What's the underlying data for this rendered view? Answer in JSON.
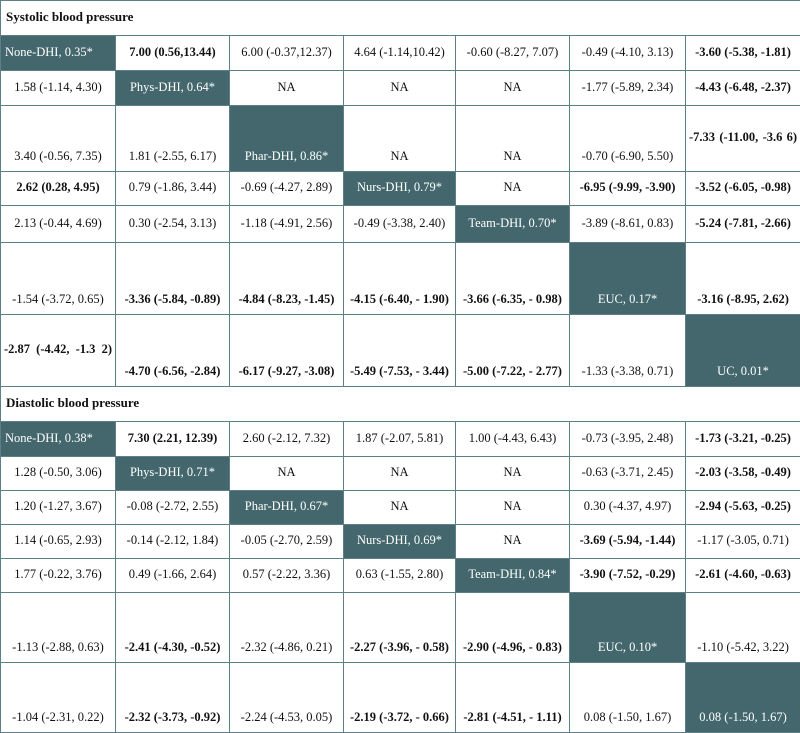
{
  "systolic": {
    "title": "Systolic blood pressure",
    "rows": [
      [
        "None-DHI, 0.35*",
        "7.00 (0.56,13.44)",
        "6.00 (-0.37,12.37)",
        "4.64 (-1.14,10.42)",
        "-0.60 (-8.27, 7.07)",
        "-0.49 (-4.10, 3.13)",
        "-3.60 (-5.38, -1.81)"
      ],
      [
        "1.58 (-1.14, 4.30)",
        "Phys-DHI, 0.64*",
        "NA",
        "NA",
        "NA",
        "-1.77 (-5.89, 2.34)",
        "-4.43 (-6.48, -2.37)"
      ],
      [
        "3.40 (-0.56, 7.35)",
        "1.81 (-2.55, 6.17)",
        "Phar-DHI, 0.86*",
        "NA",
        "NA",
        "-0.70 (-6.90, 5.50)",
        "-7.33 (-11.00, -3.6 6)"
      ],
      [
        "2.62 (0.28, 4.95)",
        "0.79 (-1.86, 3.44)",
        "-0.69 (-4.27, 2.89)",
        "Nurs-DHI, 0.79*",
        "NA",
        "-6.95 (-9.99, -3.90)",
        "-3.52 (-6.05, -0.98)"
      ],
      [
        "2.13 (-0.44, 4.69)",
        "0.30 (-2.54, 3.13)",
        "-1.18 (-4.91, 2.56)",
        "-0.49 (-3.38, 2.40)",
        "Team-DHI, 0.70*",
        "-3.89 (-8.61, 0.83)",
        "-5.24 (-7.81, -2.66)"
      ],
      [
        "-1.54 (-3.72, 0.65)",
        "-3.36 (-5.84, -0.89)",
        "-4.84 (-8.23, -1.45)",
        "-4.15 (-6.40, - 1.90)",
        "-3.66 (-6.35, - 0.98)",
        "EUC, 0.17*",
        "-3.16 (-8.95, 2.62)"
      ],
      [
        "-2.87 (-4.42, -1.3 2)",
        "-4.70 (-6.56, -2.84)",
        "-6.17 (-9.27, -3.08)",
        "-5.49 (-7.53, - 3.44)",
        "-5.00 (-7.22, - 2.77)",
        "-1.33 (-3.38, 0.71)",
        "UC, 0.01*"
      ]
    ]
  },
  "diastolic": {
    "title": "Diastolic blood pressure",
    "rows": [
      [
        "None-DHI, 0.38*",
        "7.30 (2.21, 12.39)",
        "2.60 (-2.12, 7.32)",
        "1.87 (-2.07, 5.81)",
        "1.00 (-4.43, 6.43)",
        "-0.73 (-3.95, 2.48)",
        "-1.73 (-3.21, -0.25)"
      ],
      [
        "1.28 (-0.50, 3.06)",
        "Phys-DHI, 0.71*",
        "NA",
        "NA",
        "NA",
        "-0.63 (-3.71, 2.45)",
        "-2.03 (-3.58, -0.49)"
      ],
      [
        "1.20 (-1.27, 3.67)",
        "-0.08 (-2.72, 2.55)",
        "Phar-DHI, 0.67*",
        "NA",
        "NA",
        "0.30 (-4.37, 4.97)",
        "-2.94 (-5.63, -0.25)"
      ],
      [
        "1.14 (-0.65, 2.93)",
        "-0.14 (-2.12, 1.84)",
        "-0.05 (-2.70, 2.59)",
        "Nurs-DHI, 0.69*",
        "NA",
        "-3.69 (-5.94, -1.44)",
        "-1.17 (-3.05, 0.71)"
      ],
      [
        "1.77 (-0.22, 3.76)",
        "0.49 (-1.66, 2.64)",
        "0.57 (-2.22, 3.36)",
        "0.63 (-1.55, 2.80)",
        "Team-DHI, 0.84*",
        "-3.90 (-7.52, -0.29)",
        "-2.61 (-4.60, -0.63)"
      ],
      [
        "-1.13 (-2.88, 0.63)",
        "-2.41 (-4.30, -0.52)",
        "-2.32 (-4.86, 0.21)",
        "-2.27 (-3.96, - 0.58)",
        "-2.90 (-4.96, - 0.83)",
        "EUC, 0.10*",
        "-1.10 (-5.42, 3.22)"
      ],
      [
        "-1.04 (-2.31, 0.22)",
        "-2.32 (-3.73, -0.92)",
        "-2.24 (-4.53, 0.05)",
        "-2.19 (-3.72, - 0.66)",
        "-2.81 (-4.51, - 1.11)",
        "0.08 (-1.50, 1.67)",
        "0.08 (-1.50, 1.67)"
      ]
    ]
  },
  "colors": {
    "diagonal": "#43676c",
    "border": "#5d7f86"
  }
}
